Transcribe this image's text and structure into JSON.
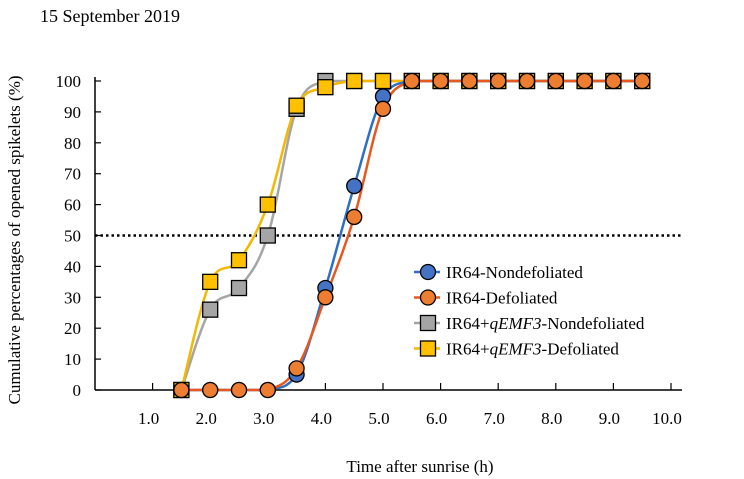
{
  "chart_data": {
    "type": "line",
    "title": "15 September 2019",
    "xlabel": "Time  after  sunrise  (h)",
    "ylabel": "Cumulative  percentages  of  opened  spikelets  (%)",
    "xlim": [
      0,
      10
    ],
    "ylim": [
      0,
      100
    ],
    "x_ticks": [
      "1.0",
      "2.0",
      "3.0",
      "4.0",
      "5.0",
      "6.0",
      "7.0",
      "8.0",
      "9.0",
      "10.0"
    ],
    "y_ticks": [
      "0",
      "10",
      "20",
      "30",
      "40",
      "50",
      "60",
      "70",
      "80",
      "90",
      "100"
    ],
    "reference_line": {
      "y": 50,
      "style": "dotted"
    },
    "legend_position": "center-right",
    "x": [
      1.5,
      2.0,
      2.5,
      3.0,
      3.5,
      4.0,
      4.5,
      5.0,
      5.5,
      6.0,
      6.5,
      7.0,
      7.5,
      8.0,
      8.5,
      9.0,
      9.5
    ],
    "series": [
      {
        "name_prefix": "IR64-Nondefoliated",
        "name_italic": "",
        "name_suffix": "",
        "marker": "circle",
        "color": "#2E6FC4",
        "fill": "#4472C4",
        "values": [
          0,
          0,
          0,
          0,
          5,
          33,
          66,
          95,
          100,
          100,
          100,
          100,
          100,
          100,
          100,
          100,
          100
        ]
      },
      {
        "name_prefix": "IR64-Defoliated",
        "name_italic": "",
        "name_suffix": "",
        "marker": "circle",
        "color": "#E8581E",
        "fill": "#ED7D31",
        "values": [
          0,
          0,
          0,
          0,
          7,
          30,
          56,
          91,
          100,
          100,
          100,
          100,
          100,
          100,
          100,
          100,
          100
        ]
      },
      {
        "name_prefix": "IR64+",
        "name_italic": "qEMF3",
        "name_suffix": "-Nondefoliated",
        "marker": "square",
        "color": "#A5A5A5",
        "fill": "#A5A5A5",
        "values": [
          0,
          26,
          33,
          50,
          91,
          100,
          100,
          100,
          100,
          100,
          100,
          100,
          100,
          100,
          100,
          100,
          100
        ]
      },
      {
        "name_prefix": "IR64+",
        "name_italic": "qEMF3",
        "name_suffix": "-Defoliated",
        "marker": "square",
        "color": "#F5B800",
        "fill": "#FFC000",
        "values": [
          0,
          35,
          42,
          60,
          92,
          98,
          100,
          100,
          100,
          100,
          100,
          100,
          100,
          100,
          100,
          100,
          100
        ]
      }
    ]
  }
}
